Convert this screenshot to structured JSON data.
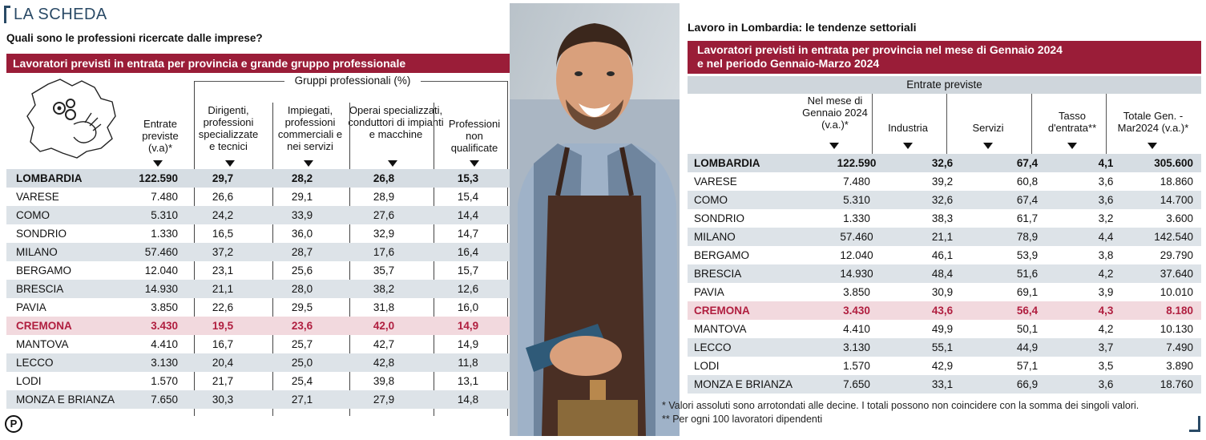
{
  "brand": "LA SCHEDA",
  "left": {
    "question": "Quali sono le professioni ricercate dalle imprese?",
    "band_title": "Lavoratori previsti in entrata per provincia e grande gruppo professionale",
    "group_title": "Gruppi professionali (%)",
    "columns": [
      "Entrate previste (v.a)*",
      "Dirigenti, professioni specializzate e tecnici",
      "Impiegati, professioni commerciali e nei servizi",
      "Operai specializzati, conduttori di impianti e macchine",
      "Professioni non qualificate"
    ],
    "rows": [
      {
        "name": "LOMBARDIA",
        "v": [
          "122.590",
          "29,7",
          "28,2",
          "26,8",
          "15,3"
        ],
        "style": "total"
      },
      {
        "name": "VARESE",
        "v": [
          "7.480",
          "26,6",
          "29,1",
          "28,9",
          "15,4"
        ],
        "style": ""
      },
      {
        "name": "COMO",
        "v": [
          "5.310",
          "24,2",
          "33,9",
          "27,6",
          "14,4"
        ],
        "style": "alt"
      },
      {
        "name": "SONDRIO",
        "v": [
          "1.330",
          "16,5",
          "36,0",
          "32,9",
          "14,7"
        ],
        "style": ""
      },
      {
        "name": "MILANO",
        "v": [
          "57.460",
          "37,2",
          "28,7",
          "17,6",
          "16,4"
        ],
        "style": "alt"
      },
      {
        "name": "BERGAMO",
        "v": [
          "12.040",
          "23,1",
          "25,6",
          "35,7",
          "15,7"
        ],
        "style": ""
      },
      {
        "name": "BRESCIA",
        "v": [
          "14.930",
          "21,1",
          "28,0",
          "38,2",
          "12,6"
        ],
        "style": "alt"
      },
      {
        "name": "PAVIA",
        "v": [
          "3.850",
          "22,6",
          "29,5",
          "31,8",
          "16,0"
        ],
        "style": ""
      },
      {
        "name": "CREMONA",
        "v": [
          "3.430",
          "19,5",
          "23,6",
          "42,0",
          "14,9"
        ],
        "style": "hl"
      },
      {
        "name": "MANTOVA",
        "v": [
          "4.410",
          "16,7",
          "25,7",
          "42,7",
          "14,9"
        ],
        "style": ""
      },
      {
        "name": "LECCO",
        "v": [
          "3.130",
          "20,4",
          "25,0",
          "42,8",
          "11,8"
        ],
        "style": "alt"
      },
      {
        "name": "LODI",
        "v": [
          "1.570",
          "21,7",
          "25,4",
          "39,8",
          "13,1"
        ],
        "style": ""
      },
      {
        "name": "MONZA E BRIANZA",
        "v": [
          "7.650",
          "30,3",
          "27,1",
          "27,9",
          "14,8"
        ],
        "style": "alt"
      }
    ],
    "logo_letter": "P"
  },
  "right": {
    "title": "Lavoro in Lombardia: le tendenze settoriali",
    "band_line1": "Lavoratori previsti in entrata per provincia nel mese di Gennaio 2024",
    "band_line2": "e nel periodo Gennaio-Marzo 2024",
    "entrate_label": "Entrate previste",
    "columns": [
      "Nel mese di Gennaio 2024 (v.a.)*",
      "Industria",
      "Servizi",
      "Tasso d'entrata**",
      "Totale Gen. -Mar2024 (v.a.)*"
    ],
    "rows": [
      {
        "name": "LOMBARDIA",
        "v": [
          "122.590",
          "32,6",
          "67,4",
          "4,1",
          "305.600"
        ],
        "style": "total"
      },
      {
        "name": "VARESE",
        "v": [
          "7.480",
          "39,2",
          "60,8",
          "3,6",
          "18.860"
        ],
        "style": ""
      },
      {
        "name": "COMO",
        "v": [
          "5.310",
          "32,6",
          "67,4",
          "3,6",
          "14.700"
        ],
        "style": "alt"
      },
      {
        "name": "SONDRIO",
        "v": [
          "1.330",
          "38,3",
          "61,7",
          "3,2",
          "3.600"
        ],
        "style": ""
      },
      {
        "name": "MILANO",
        "v": [
          "57.460",
          "21,1",
          "78,9",
          "4,4",
          "142.540"
        ],
        "style": "alt"
      },
      {
        "name": "BERGAMO",
        "v": [
          "12.040",
          "46,1",
          "53,9",
          "3,8",
          "29.790"
        ],
        "style": ""
      },
      {
        "name": "BRESCIA",
        "v": [
          "14.930",
          "48,4",
          "51,6",
          "4,2",
          "37.640"
        ],
        "style": "alt"
      },
      {
        "name": "PAVIA",
        "v": [
          "3.850",
          "30,9",
          "69,1",
          "3,9",
          "10.010"
        ],
        "style": ""
      },
      {
        "name": "CREMONA",
        "v": [
          "3.430",
          "43,6",
          "56,4",
          "4,3",
          "8.180"
        ],
        "style": "hl"
      },
      {
        "name": "MANTOVA",
        "v": [
          "4.410",
          "49,9",
          "50,1",
          "4,2",
          "10.130"
        ],
        "style": ""
      },
      {
        "name": "LECCO",
        "v": [
          "3.130",
          "55,1",
          "44,9",
          "3,7",
          "7.490"
        ],
        "style": "alt"
      },
      {
        "name": "LODI",
        "v": [
          "1.570",
          "42,9",
          "57,1",
          "3,5",
          "3.890"
        ],
        "style": ""
      },
      {
        "name": "MONZA E BRIANZA",
        "v": [
          "7.650",
          "33,1",
          "66,9",
          "3,6",
          "18.760"
        ],
        "style": "alt"
      }
    ],
    "note1": "* Valori assoluti sono arrotondati alle decine. I totali possono non coincidere con la somma dei singoli valori.",
    "note2": "** Per ogni 100 lavoratori dipendenti"
  },
  "colors": {
    "accent": "#9a1d38",
    "stripe": "#dde3e8",
    "highlight_bg": "#f2d9de",
    "highlight_text": "#b01e3f",
    "brand_blue": "#2a4a66"
  }
}
